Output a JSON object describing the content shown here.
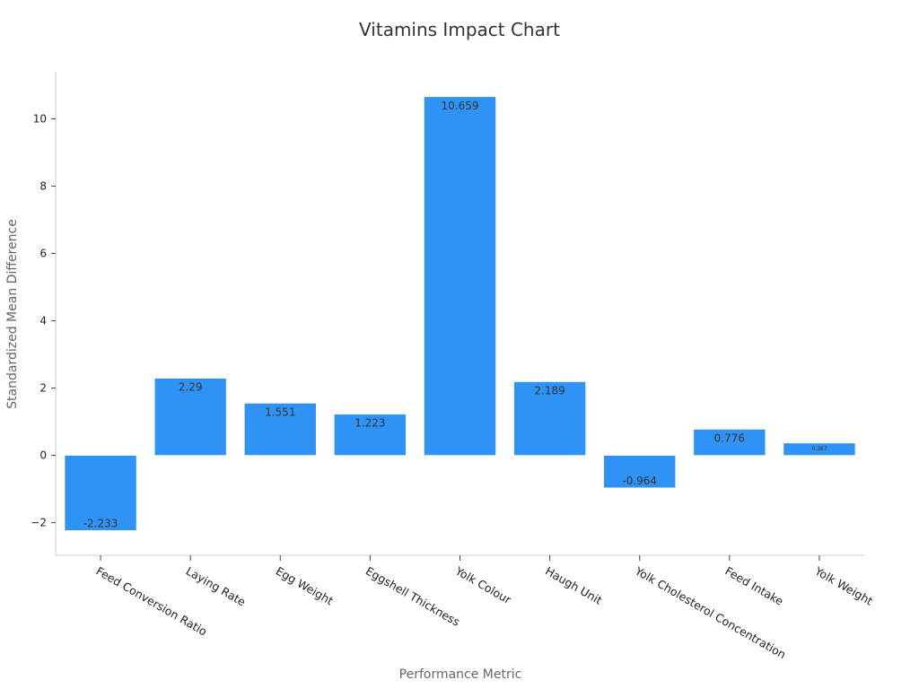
{
  "chart_data": {
    "type": "bar",
    "title": "Vitamins Impact Chart",
    "xlabel": "Performance Metric",
    "ylabel": "Standardized Mean Difference",
    "categories": [
      "Feed Conversion Ratio",
      "Laying Rate",
      "Egg Weight",
      "Eggshell Thickness",
      "Yolk Colour",
      "Haugh Unit",
      "Yolk Cholesterol Concentration",
      "Feed Intake",
      "Yolk Weight"
    ],
    "values": [
      -2.233,
      2.29,
      1.551,
      1.223,
      10.659,
      2.189,
      -0.964,
      0.776,
      0.367
    ],
    "value_labels": [
      "-2.233",
      "2.29",
      "1.551",
      "1.223",
      "10.659",
      "2.189",
      "-0.964",
      "0.776",
      "0.367"
    ],
    "ylim": [
      -2.97,
      11.4
    ],
    "yticks": [
      -2,
      0,
      2,
      4,
      6,
      8,
      10
    ],
    "ytick_labels": [
      "−2",
      "0",
      "2",
      "4",
      "6",
      "8",
      "10"
    ],
    "bar_color": "#2f93f5",
    "grid": false,
    "legend": "none"
  }
}
